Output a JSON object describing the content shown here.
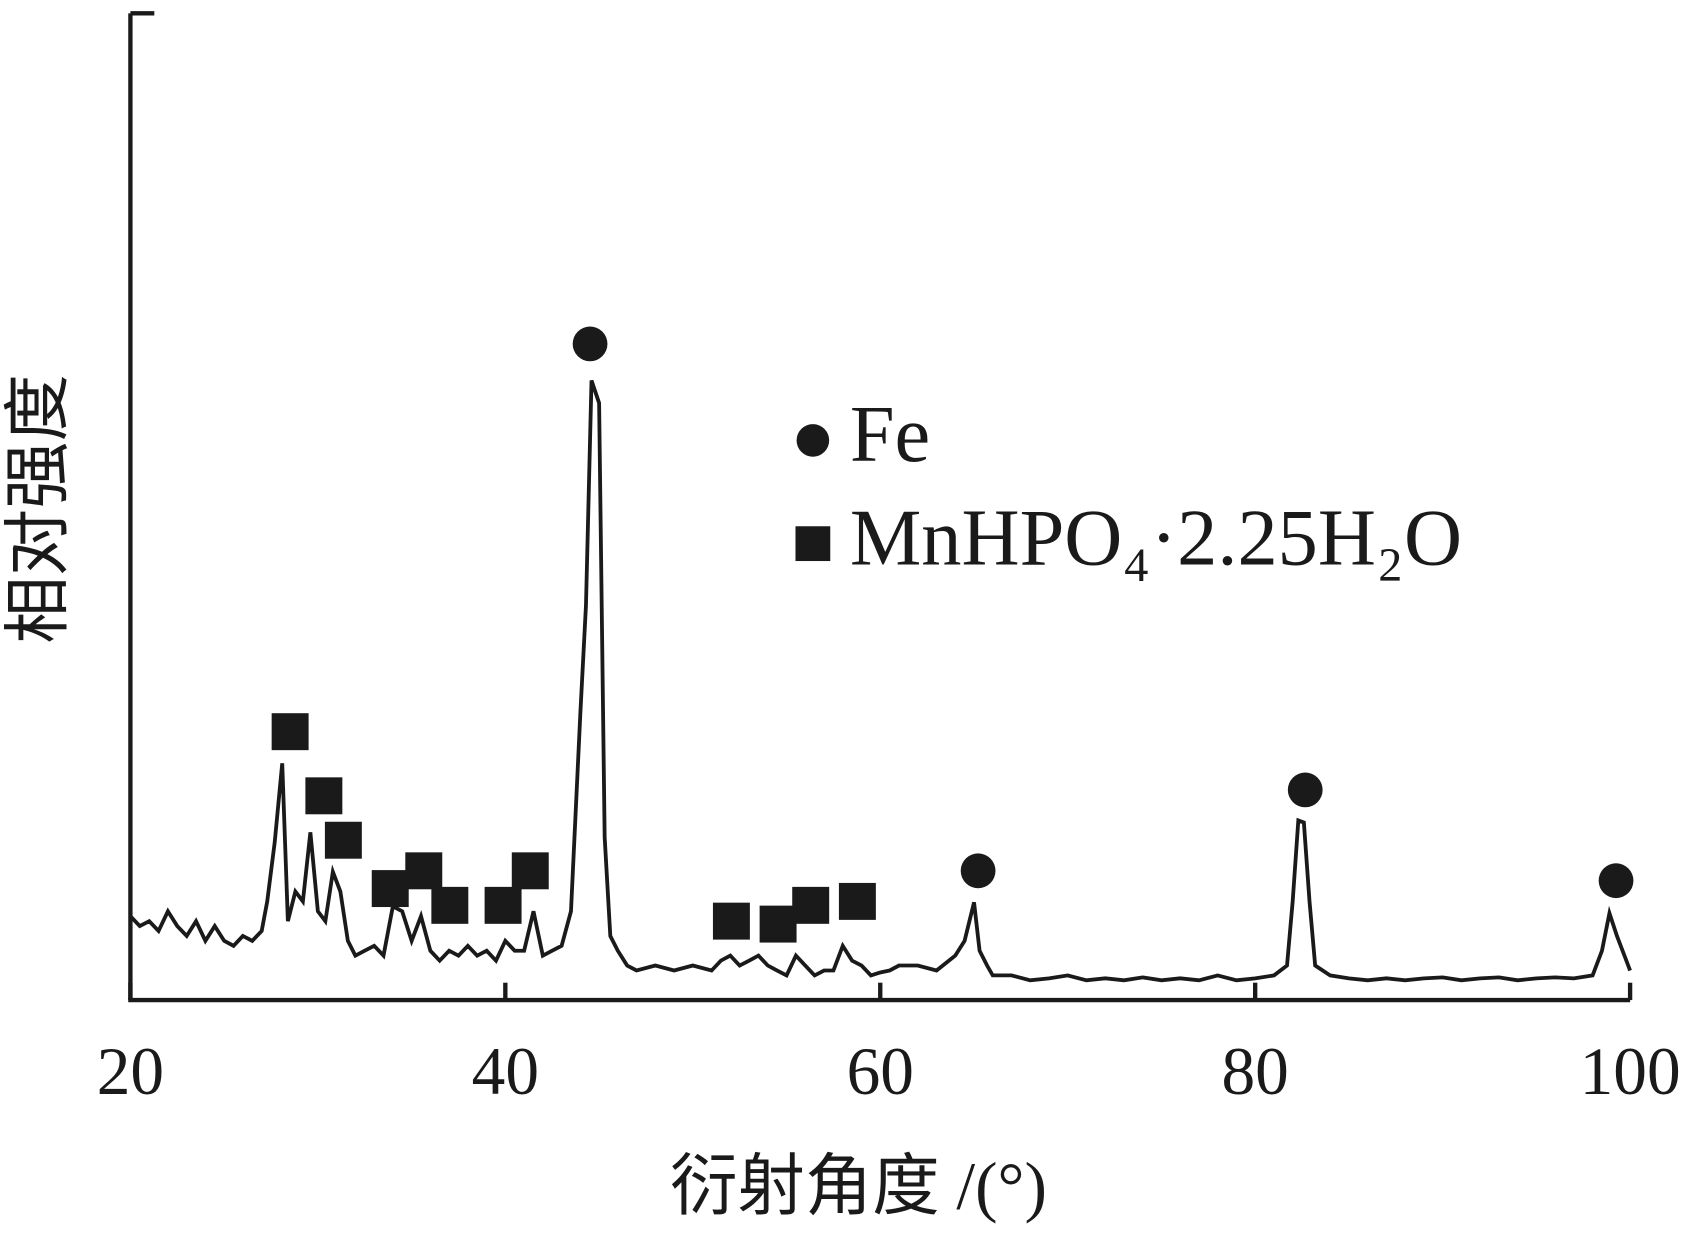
{
  "chart_data": {
    "type": "line",
    "x_label": "衍射角度 /(°)",
    "y_label": "相对强度",
    "xlim": [
      20,
      100
    ],
    "xticks": [
      20,
      40,
      60,
      80,
      100
    ],
    "ylim": [
      0,
      100
    ],
    "color": "#1a1a1a",
    "legend": "upper right",
    "x": [
      20,
      20.5,
      21,
      21.5,
      22,
      22.5,
      23,
      23.5,
      24,
      24.5,
      25,
      25.5,
      26,
      26.5,
      27,
      27.3,
      27.7,
      28.1,
      28.4,
      28.8,
      29.2,
      29.6,
      30,
      30.4,
      30.8,
      31.2,
      31.6,
      32,
      32.5,
      33,
      33.5,
      34,
      34.5,
      35,
      35.5,
      36,
      36.5,
      37,
      37.5,
      38,
      38.5,
      39,
      39.5,
      40,
      40.5,
      41,
      41.5,
      42,
      42.5,
      43,
      43.5,
      44,
      44.3,
      44.6,
      45,
      45.3,
      45.6,
      46,
      46.5,
      47,
      48,
      49,
      50,
      51,
      51.5,
      52,
      52.5,
      53,
      53.5,
      54,
      54.5,
      55,
      55.5,
      56,
      56.5,
      57,
      57.5,
      58,
      58.5,
      59,
      59.5,
      60,
      60.5,
      61,
      62,
      63,
      64,
      64.5,
      65,
      65.3,
      65.7,
      66,
      67,
      68,
      69,
      70,
      71,
      72,
      73,
      74,
      75,
      76,
      77,
      78,
      79,
      80,
      81,
      81.7,
      82,
      82.3,
      82.6,
      82.9,
      83.2,
      84,
      85,
      86,
      87,
      88,
      89,
      90,
      91,
      92,
      93,
      94,
      95,
      96,
      97,
      98,
      98.5,
      98.9,
      99.3,
      99.7,
      100
    ],
    "values": [
      8.5,
      7.5,
      8,
      7,
      9,
      7.5,
      6.5,
      8,
      6,
      7.5,
      6,
      5.5,
      6.5,
      6,
      7,
      10,
      16,
      24,
      8,
      11,
      10,
      17,
      9,
      8,
      13,
      11,
      6,
      4.5,
      5,
      5.5,
      4.5,
      9.5,
      9,
      6,
      8.5,
      5,
      4,
      5,
      4.5,
      5.5,
      4.5,
      5,
      4,
      6,
      5,
      5,
      9,
      4.5,
      5,
      5.5,
      9,
      29,
      40,
      62.8,
      60.5,
      16.5,
      6.5,
      5,
      3.5,
      3,
      3.5,
      3,
      3.5,
      3,
      4,
      4.5,
      3.5,
      4,
      4.5,
      3.5,
      3,
      2.5,
      4.5,
      3.5,
      2.5,
      3,
      3,
      5.5,
      4,
      3.5,
      2.5,
      2.8,
      3,
      3.5,
      3.5,
      3,
      4.5,
      6,
      9.9,
      5,
      3.5,
      2.5,
      2.5,
      2,
      2.2,
      2.5,
      2,
      2.2,
      2,
      2.3,
      2,
      2.2,
      2,
      2.5,
      2,
      2.2,
      2.5,
      3.5,
      10,
      18.2,
      18,
      10,
      3.5,
      2.5,
      2.2,
      2,
      2.2,
      2,
      2.2,
      2.3,
      2,
      2.2,
      2.3,
      2,
      2.2,
      2.3,
      2.2,
      2.5,
      5,
      8.8,
      6.5,
      4.5,
      3
    ],
    "markers": [
      {
        "name": "Fe",
        "shape": "circle",
        "x": [
          44.52,
          65.22,
          82.67,
          99.25
        ],
        "y": [
          66.5,
          13.1,
          21.3,
          12.1
        ]
      },
      {
        "name": "MnHPO₄·2.25H₂O",
        "shape": "square",
        "x": [
          28.52,
          30.32,
          31.36,
          33.86,
          35.65,
          37.04,
          39.88,
          41.33,
          52.06,
          54.55,
          56.29,
          58.78
        ],
        "y": [
          27.2,
          20.7,
          16.2,
          11.3,
          13.1,
          9.6,
          9.6,
          13.1,
          8.0,
          7.7,
          9.6,
          10.0
        ]
      }
    ]
  }
}
